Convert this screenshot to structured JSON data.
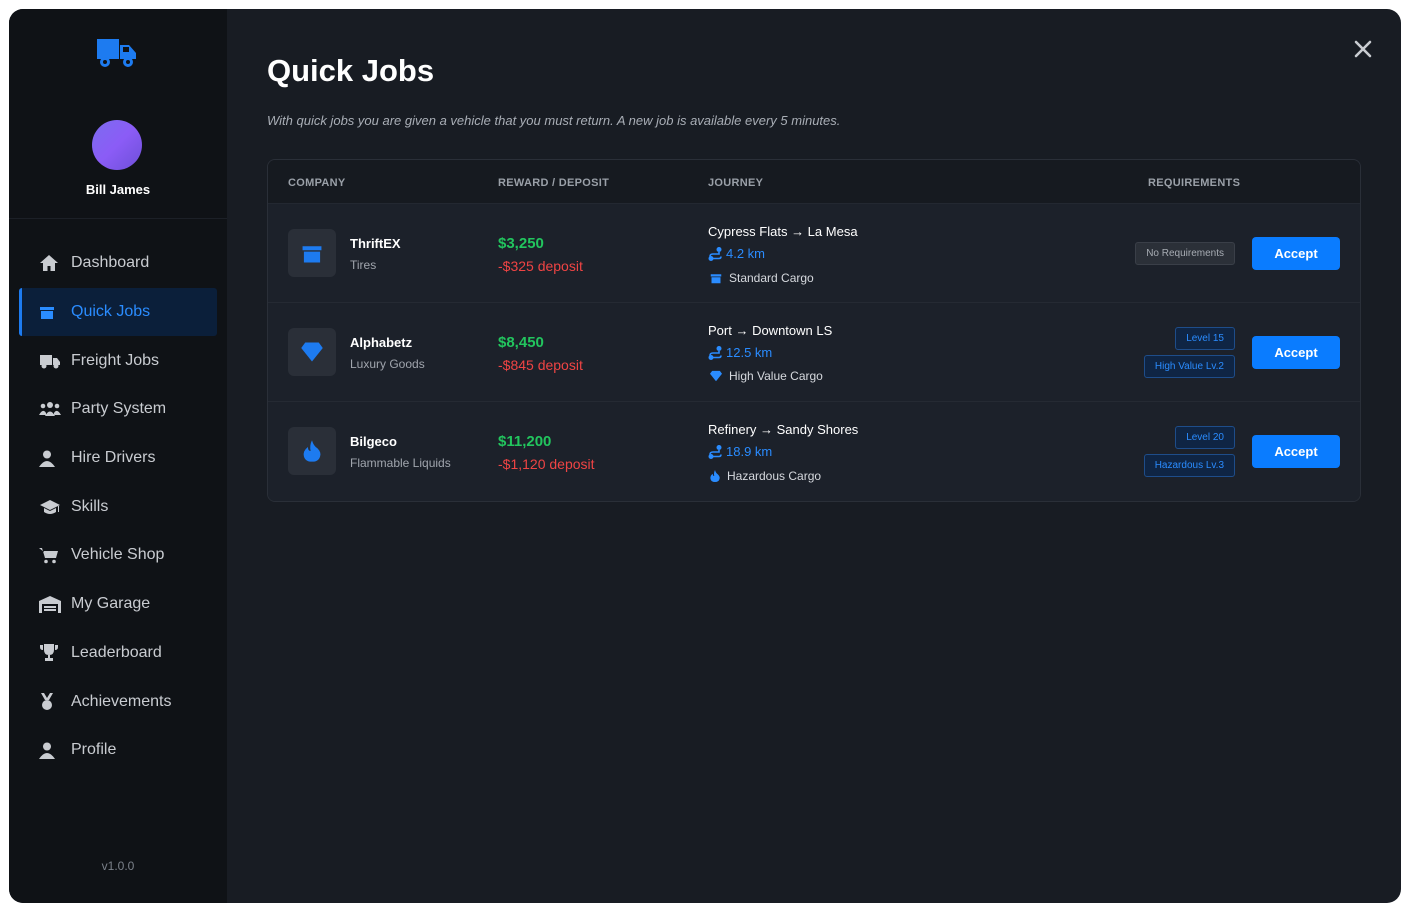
{
  "user": {
    "name": "Bill James"
  },
  "nav": [
    {
      "label": "Dashboard",
      "icon": "home-icon"
    },
    {
      "label": "Quick Jobs",
      "icon": "box-icon",
      "active": true
    },
    {
      "label": "Freight Jobs",
      "icon": "truck-icon"
    },
    {
      "label": "Party System",
      "icon": "users-icon"
    },
    {
      "label": "Hire Drivers",
      "icon": "person-icon"
    },
    {
      "label": "Skills",
      "icon": "graduation-cap-icon"
    },
    {
      "label": "Vehicle Shop",
      "icon": "cart-icon"
    },
    {
      "label": "My Garage",
      "icon": "garage-icon"
    },
    {
      "label": "Leaderboard",
      "icon": "trophy-icon"
    },
    {
      "label": "Achievements",
      "icon": "medal-icon"
    },
    {
      "label": "Profile",
      "icon": "person-icon"
    }
  ],
  "version": "v1.0.0",
  "page": {
    "title": "Quick Jobs",
    "subtitle": "With quick jobs you are given a vehicle that you must return. A new job is available every 5 minutes."
  },
  "table": {
    "headers": {
      "company": "COMPANY",
      "reward": "REWARD / DEPOSIT",
      "journey": "JOURNEY",
      "requirements": "REQUIREMENTS"
    },
    "accept_label": "Accept",
    "jobs": [
      {
        "company": "ThriftEX",
        "type": "Tires",
        "icon": "box-icon",
        "reward": "$3,250",
        "deposit": "-$325 deposit",
        "route": "Cypress Flats → La Mesa",
        "distance": "4.2 km",
        "cargo": "Standard Cargo",
        "cargo_icon": "box-icon",
        "requirements": [
          {
            "label": "No Requirements",
            "style": "gray"
          }
        ]
      },
      {
        "company": "Alphabetz",
        "type": "Luxury Goods",
        "icon": "gem-icon",
        "reward": "$8,450",
        "deposit": "-$845 deposit",
        "route": "Port → Downtown LS",
        "distance": "12.5 km",
        "cargo": "High Value Cargo",
        "cargo_icon": "gem-icon",
        "requirements": [
          {
            "label": "Level 15",
            "style": "blue"
          },
          {
            "label": "High Value Lv.2",
            "style": "blue"
          }
        ]
      },
      {
        "company": "Bilgeco",
        "type": "Flammable Liquids",
        "icon": "fire-icon",
        "reward": "$11,200",
        "deposit": "-$1,120 deposit",
        "route": "Refinery → Sandy Shores",
        "distance": "18.9 km",
        "cargo": "Hazardous Cargo",
        "cargo_icon": "fire-icon",
        "requirements": [
          {
            "label": "Level 20",
            "style": "blue"
          },
          {
            "label": "Hazardous Lv.3",
            "style": "blue"
          }
        ]
      }
    ]
  },
  "colors": {
    "accent": "#0a7cff",
    "reward": "#22c55e",
    "deposit": "#ef4444",
    "sidebar": "#0f1216",
    "main": "#181c23"
  }
}
